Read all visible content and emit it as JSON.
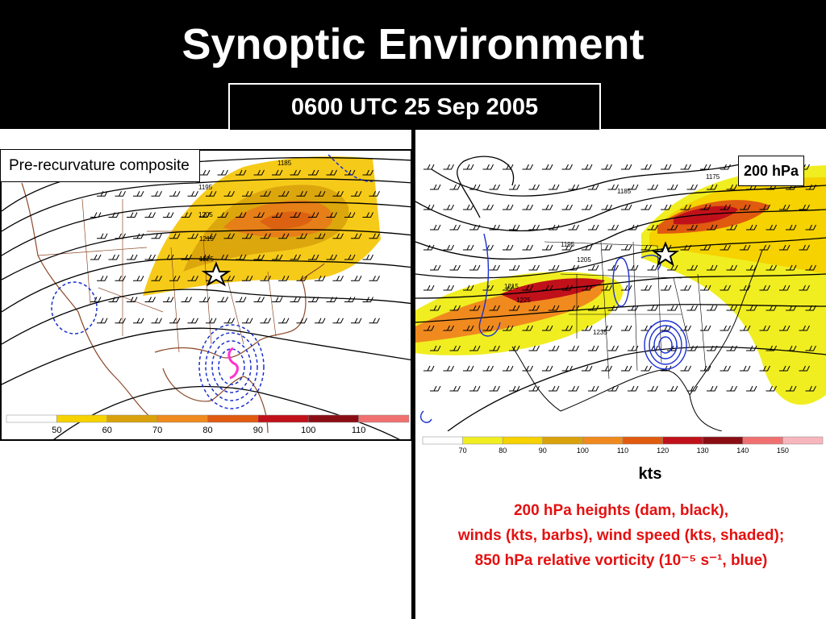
{
  "slide": {
    "title": "Synoptic Environment",
    "time_label": "0600 UTC 25 Sep 2005"
  },
  "left_map": {
    "panel_label": "Pre-recurvature composite",
    "contour_labels": [
      "1185",
      "1195",
      "1205",
      "1215",
      "1225"
    ],
    "color_scale": {
      "ticks": [
        "50",
        "60",
        "70",
        "80",
        "90",
        "100",
        "110"
      ],
      "colors": [
        "#ffffff",
        "#f5d200",
        "#d9a20c",
        "#f08a1e",
        "#e05a10",
        "#c0111a",
        "#8b0d14",
        "#f07070"
      ]
    }
  },
  "right_map": {
    "panel_label": "200 hPa",
    "contour_labels": [
      "1175",
      "1185",
      "1195",
      "1205",
      "1215",
      "1225",
      "1235"
    ],
    "color_scale": {
      "ticks": [
        "70",
        "80",
        "90",
        "100",
        "110",
        "120",
        "130",
        "140",
        "150"
      ],
      "colors": [
        "#ffffff",
        "#f0ee20",
        "#f5d200",
        "#d9a20c",
        "#f08a1e",
        "#e05a10",
        "#c0111a",
        "#8b0d14",
        "#f07070",
        "#f7b6bd"
      ]
    },
    "units": "kts"
  },
  "caption": {
    "line1": "200 hPa heights (dam, black),",
    "line2": "winds (kts, barbs), wind speed (kts, shaded);",
    "line3": "850 hPa relative vorticity (10⁻⁵ s⁻¹, blue)"
  },
  "colors": {
    "heights": "#000000",
    "vorticity": "#1a2fd0",
    "storm_track": "#ff30d0",
    "borders": "#8b4a2a"
  },
  "icons": [
    "star-icon",
    "hurricane-track-icon"
  ]
}
